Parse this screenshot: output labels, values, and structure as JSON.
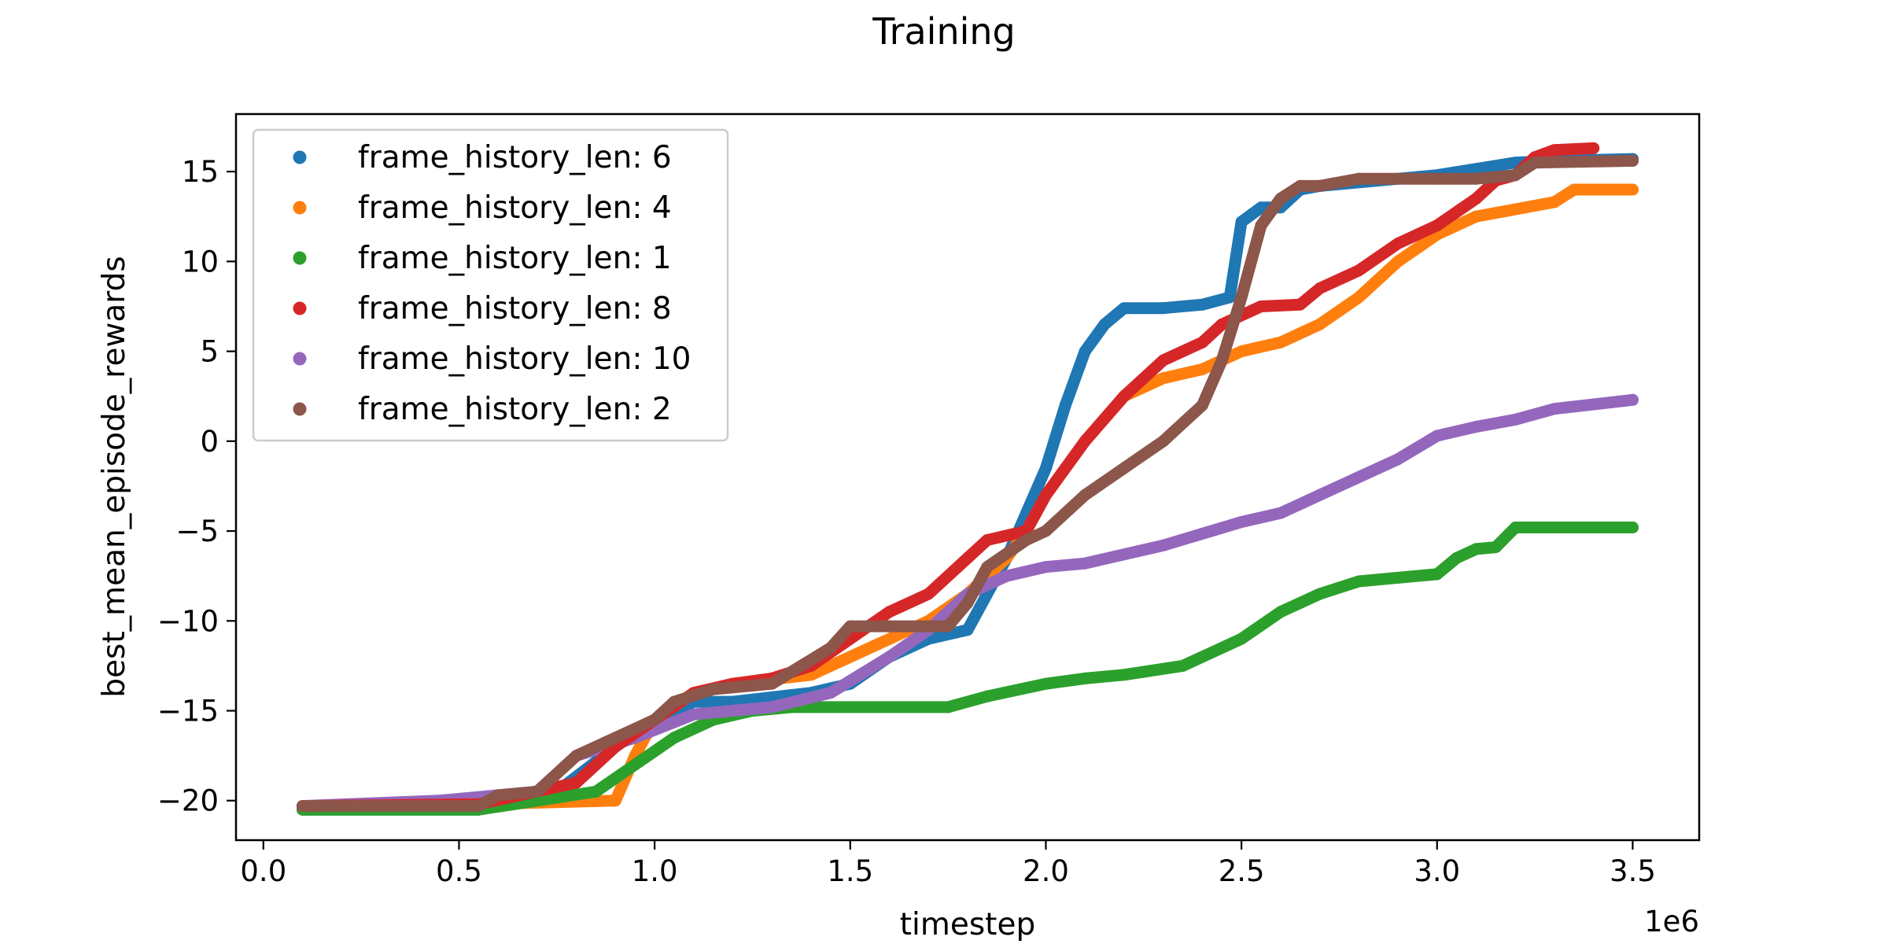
{
  "chart_data": {
    "type": "line",
    "title": "Training",
    "xlabel": "timestep",
    "ylabel": "best_mean_episode_rewards",
    "x_offset_label": "1e6",
    "xlim": [
      -0.07,
      3.67
    ],
    "ylim": [
      -22.2,
      18.2
    ],
    "xticks": [
      0.0,
      0.5,
      1.0,
      1.5,
      2.0,
      2.5,
      3.0,
      3.5
    ],
    "xtick_labels": [
      "0.0",
      "0.5",
      "1.0",
      "1.5",
      "2.0",
      "2.5",
      "3.0",
      "3.5"
    ],
    "yticks": [
      -20,
      -15,
      -10,
      -5,
      0,
      5,
      10,
      15
    ],
    "ytick_labels": [
      "−20",
      "−15",
      "−10",
      "−5",
      "0",
      "5",
      "10",
      "15"
    ],
    "grid": false,
    "legend_position": "upper-left",
    "series": [
      {
        "name": "frame_history_len: 6",
        "color": "#1f77b4",
        "x": [
          0.1,
          0.55,
          0.75,
          0.9,
          1.0,
          1.1,
          1.2,
          1.4,
          1.5,
          1.6,
          1.7,
          1.8,
          1.9,
          1.95,
          2.0,
          2.05,
          2.1,
          2.15,
          2.2,
          2.3,
          2.4,
          2.47,
          2.5,
          2.55,
          2.6,
          2.65,
          2.7,
          2.85,
          3.0,
          3.2,
          3.3,
          3.5
        ],
        "y": [
          -20.5,
          -20.5,
          -19.5,
          -17.0,
          -15.5,
          -14.5,
          -14.5,
          -14.0,
          -13.5,
          -12.0,
          -11.0,
          -10.5,
          -6.5,
          -4.0,
          -1.5,
          2.0,
          5.0,
          6.5,
          7.4,
          7.4,
          7.6,
          8.0,
          12.2,
          13.0,
          13.0,
          14.0,
          14.2,
          14.5,
          14.8,
          15.5,
          15.6,
          15.7
        ]
      },
      {
        "name": "frame_history_len: 4",
        "color": "#ff7f0e",
        "x": [
          0.1,
          0.55,
          0.9,
          0.95,
          1.0,
          1.1,
          1.2,
          1.4,
          1.5,
          1.7,
          1.8,
          1.9,
          1.95,
          2.0,
          2.05,
          2.1,
          2.2,
          2.3,
          2.4,
          2.5,
          2.6,
          2.7,
          2.8,
          2.9,
          3.0,
          3.1,
          3.3,
          3.35,
          3.5
        ],
        "y": [
          -20.5,
          -20.2,
          -20.0,
          -17.5,
          -15.5,
          -14.0,
          -13.5,
          -13.0,
          -12.0,
          -10.0,
          -8.5,
          -6.5,
          -5.0,
          -3.0,
          -1.5,
          0.0,
          2.5,
          3.5,
          4.0,
          5.0,
          5.5,
          6.5,
          8.0,
          10.0,
          11.5,
          12.5,
          13.3,
          14.0,
          14.0
        ]
      },
      {
        "name": "frame_history_len: 1",
        "color": "#2ca02c",
        "x": [
          0.1,
          0.55,
          0.85,
          0.95,
          1.05,
          1.15,
          1.25,
          1.35,
          1.5,
          1.75,
          1.85,
          2.0,
          2.1,
          2.2,
          2.35,
          2.5,
          2.6,
          2.7,
          2.8,
          2.9,
          3.0,
          3.05,
          3.1,
          3.15,
          3.2,
          3.3,
          3.5
        ],
        "y": [
          -20.5,
          -20.5,
          -19.5,
          -18.0,
          -16.5,
          -15.5,
          -15.0,
          -14.8,
          -14.8,
          -14.8,
          -14.2,
          -13.5,
          -13.2,
          -13.0,
          -12.5,
          -11.0,
          -9.5,
          -8.5,
          -7.8,
          -7.6,
          -7.4,
          -6.5,
          -6.0,
          -5.9,
          -4.8,
          -4.8,
          -4.8
        ]
      },
      {
        "name": "frame_history_len: 10",
        "color": "#9467bd",
        "x": [
          0.1,
          0.45,
          0.7,
          0.8,
          0.95,
          1.1,
          1.3,
          1.45,
          1.6,
          1.7,
          1.8,
          1.9,
          2.0,
          2.1,
          2.3,
          2.5,
          2.6,
          2.7,
          2.8,
          2.9,
          3.0,
          3.1,
          3.2,
          3.3,
          3.5
        ],
        "y": [
          -20.3,
          -20.0,
          -19.5,
          -17.5,
          -16.5,
          -15.2,
          -14.8,
          -14.0,
          -12.0,
          -10.5,
          -8.5,
          -7.5,
          -7.0,
          -6.8,
          -5.8,
          -4.5,
          -4.0,
          -3.0,
          -2.0,
          -1.0,
          0.3,
          0.8,
          1.2,
          1.8,
          2.3
        ]
      },
      {
        "name": "frame_history_len: 8",
        "color": "#d62728",
        "x": [
          0.1,
          0.55,
          0.8,
          0.9,
          1.0,
          1.1,
          1.2,
          1.3,
          1.4,
          1.5,
          1.6,
          1.7,
          1.8,
          1.85,
          1.95,
          2.0,
          2.05,
          2.1,
          2.2,
          2.3,
          2.4,
          2.45,
          2.55,
          2.65,
          2.7,
          2.8,
          2.9,
          3.0,
          3.1,
          3.15,
          3.2,
          3.25,
          3.3,
          3.4
        ],
        "y": [
          -20.3,
          -20.2,
          -19.0,
          -17.0,
          -15.5,
          -14.0,
          -13.5,
          -13.2,
          -12.5,
          -11.0,
          -9.5,
          -8.5,
          -6.5,
          -5.5,
          -5.0,
          -3.0,
          -1.5,
          0.0,
          2.5,
          4.5,
          5.5,
          6.5,
          7.5,
          7.6,
          8.5,
          9.5,
          11.0,
          12.0,
          13.5,
          14.5,
          14.8,
          15.8,
          16.2,
          16.3
        ]
      },
      {
        "name": "frame_history_len: 2",
        "color": "#8c564b",
        "x": [
          0.1,
          0.55,
          0.6,
          0.7,
          0.8,
          0.9,
          1.0,
          1.05,
          1.15,
          1.3,
          1.45,
          1.5,
          1.6,
          1.7,
          1.75,
          1.8,
          1.85,
          1.95,
          2.0,
          2.1,
          2.2,
          2.3,
          2.4,
          2.45,
          2.5,
          2.55,
          2.6,
          2.65,
          2.7,
          2.8,
          2.9,
          3.0,
          3.1,
          3.2,
          3.25,
          3.5
        ],
        "y": [
          -20.3,
          -20.3,
          -19.7,
          -19.5,
          -17.5,
          -16.5,
          -15.5,
          -14.5,
          -13.8,
          -13.5,
          -11.5,
          -10.3,
          -10.3,
          -10.3,
          -10.3,
          -9.0,
          -7.0,
          -5.5,
          -5.0,
          -3.0,
          -1.5,
          0.0,
          2.0,
          4.5,
          8.0,
          12.0,
          13.5,
          14.2,
          14.2,
          14.6,
          14.6,
          14.6,
          14.6,
          14.8,
          15.5,
          15.6
        ]
      }
    ]
  }
}
